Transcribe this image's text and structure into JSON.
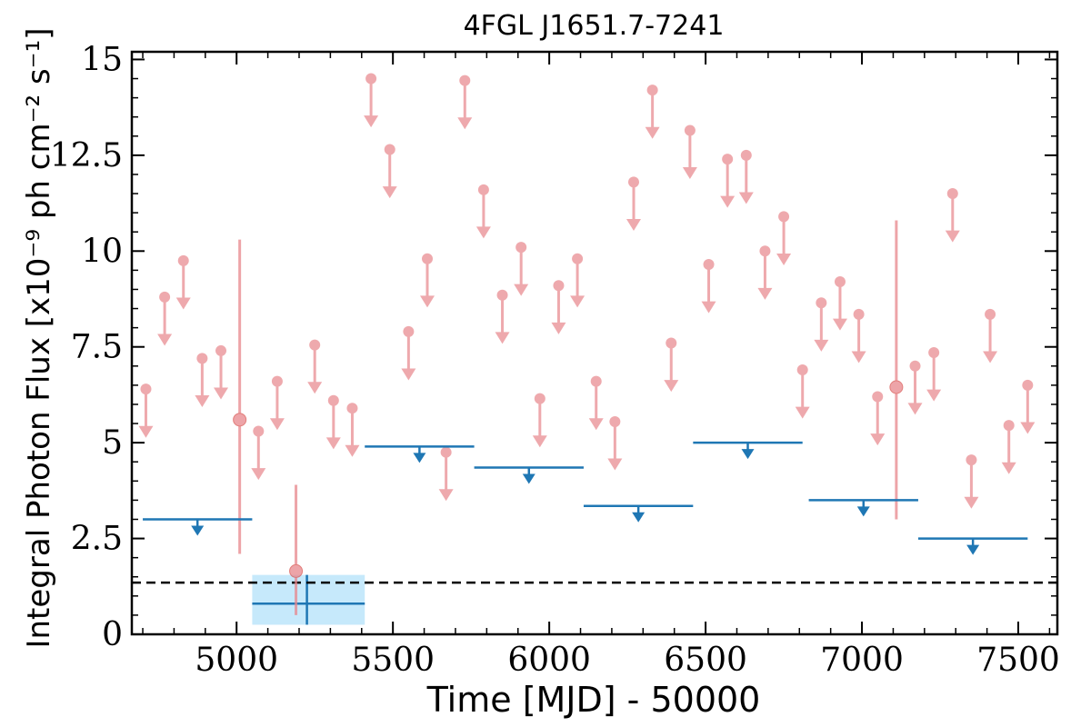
{
  "chart_data": {
    "type": "scatter",
    "title": "4FGL J1651.7-7241",
    "xlabel": "Time [MJD] - 50000",
    "ylabel": "Integral Photon Flux [x10⁻⁹ ph cm⁻² s⁻¹]",
    "xlim": [
      4665,
      7625
    ],
    "ylim": [
      0,
      15.2
    ],
    "x_ticks": [
      {
        "value": 5000,
        "label": "5000"
      },
      {
        "value": 5500,
        "label": "5500"
      },
      {
        "value": 6000,
        "label": "6000"
      },
      {
        "value": 6500,
        "label": "6500"
      },
      {
        "value": 7000,
        "label": "7000"
      },
      {
        "value": 7500,
        "label": "7500"
      }
    ],
    "y_ticks": [
      {
        "value": 0,
        "label": "0"
      },
      {
        "value": 2.5,
        "label": "2.5"
      },
      {
        "value": 5,
        "label": "5"
      },
      {
        "value": 7.5,
        "label": "7.5"
      },
      {
        "value": 10,
        "label": "10"
      },
      {
        "value": 12.5,
        "label": "12.5"
      },
      {
        "value": 15,
        "label": "15"
      }
    ],
    "grid": false,
    "colors": {
      "short_bin": "#e8868b",
      "long_bin": "#1f77b4",
      "detection_fill": "#c6e9fb",
      "reference_line": "#000000"
    },
    "short_bin_upper_limits": [
      [
        4710,
        6.4
      ],
      [
        4770,
        8.8
      ],
      [
        4830,
        9.75
      ],
      [
        4890,
        7.2
      ],
      [
        4950,
        7.4
      ],
      [
        5070,
        5.3
      ],
      [
        5130,
        6.6
      ],
      [
        5250,
        7.55
      ],
      [
        5310,
        6.1
      ],
      [
        5370,
        5.9
      ],
      [
        5430,
        14.5
      ],
      [
        5490,
        12.65
      ],
      [
        5550,
        7.9
      ],
      [
        5610,
        9.8
      ],
      [
        5670,
        4.75
      ],
      [
        5730,
        14.45
      ],
      [
        5790,
        11.6
      ],
      [
        5850,
        8.85
      ],
      [
        5910,
        10.1
      ],
      [
        5970,
        6.15
      ],
      [
        6030,
        9.1
      ],
      [
        6090,
        9.8
      ],
      [
        6150,
        6.6
      ],
      [
        6210,
        5.55
      ],
      [
        6270,
        11.8
      ],
      [
        6330,
        14.2
      ],
      [
        6390,
        7.6
      ],
      [
        6450,
        13.15
      ],
      [
        6510,
        9.65
      ],
      [
        6570,
        12.4
      ],
      [
        6630,
        12.5
      ],
      [
        6690,
        10.0
      ],
      [
        6750,
        10.9
      ],
      [
        6810,
        6.9
      ],
      [
        6870,
        8.65
      ],
      [
        6930,
        9.2
      ],
      [
        6990,
        8.35
      ],
      [
        7050,
        6.2
      ],
      [
        7170,
        7.0
      ],
      [
        7230,
        7.35
      ],
      [
        7290,
        11.5
      ],
      [
        7350,
        4.55
      ],
      [
        7410,
        8.35
      ],
      [
        7470,
        5.45
      ],
      [
        7530,
        6.5
      ]
    ],
    "short_bin_detections": [
      {
        "x": 5010,
        "y": 5.6,
        "y_low": 2.1,
        "y_high": 10.3
      },
      {
        "x": 5190,
        "y": 1.65,
        "y_low": 0.5,
        "y_high": 3.9
      },
      {
        "x": 7110,
        "y": 6.45,
        "y_low": 3.0,
        "y_high": 10.8
      }
    ],
    "long_bin_upper_limits": [
      {
        "x_start": 4700,
        "x_end": 5050,
        "y": 3.0
      },
      {
        "x_start": 5410,
        "x_end": 5760,
        "y": 4.9
      },
      {
        "x_start": 5760,
        "x_end": 6110,
        "y": 4.35
      },
      {
        "x_start": 6110,
        "x_end": 6460,
        "y": 3.35
      },
      {
        "x_start": 6460,
        "x_end": 6810,
        "y": 5.0
      },
      {
        "x_start": 6830,
        "x_end": 7180,
        "y": 3.5
      },
      {
        "x_start": 7180,
        "x_end": 7530,
        "y": 2.5
      }
    ],
    "long_bin_detection": {
      "x_start": 5050,
      "x_end": 5410,
      "x": 5225,
      "y": 0.8,
      "y_low": 0.25,
      "y_high": 1.55
    },
    "reference_level": 1.35
  }
}
